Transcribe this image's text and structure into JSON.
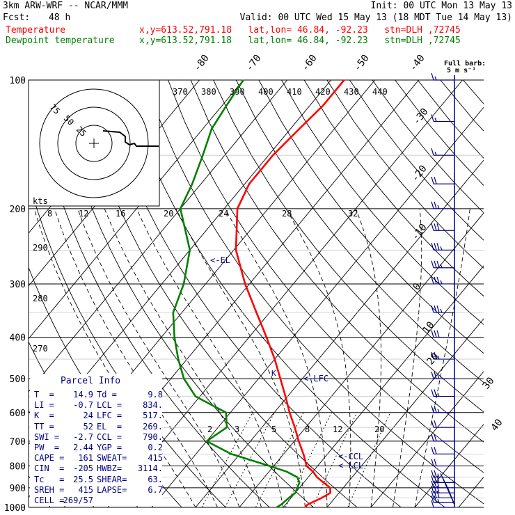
{
  "header": {
    "model": "3km ARW-WRF -- NCAR/MMM",
    "init": "Init: 00 UTC Mon 13 May 13",
    "fcst_label": "Fcst:",
    "fcst_value": "48 h",
    "valid": "Valid: 00 UTC Wed 15 May 13 (18 MDT Tue 14 May 13)",
    "temperature_label": "Temperature",
    "temperature_info": "x,y=613.52,791.18   lat,lon= 46.84, -92.23   stn=DLH ,72745",
    "dewpoint_label": "Dewpoint temperature",
    "dewpoint_info": "x,y=613.52,791.18   lat,lon= 46.84, -92.23   stn=DLH ,72745"
  },
  "colors": {
    "temperature": "#ff0000",
    "dewpoint": "#008000",
    "text": "#000080",
    "frame": "#000000",
    "isotherm_labels": "#000000"
  },
  "hodograph": {
    "kts_label": "kts",
    "ring_labels": [
      "75",
      "50",
      "25"
    ]
  },
  "barb_legend": {
    "title": "Full barb:",
    "value": "5 m s⁻¹"
  },
  "markers": {
    "el": "<-EL",
    "lfc": "<-LFC",
    "ccl": "<-CCL",
    "lcl": "<-LCL"
  },
  "parcel_info": {
    "title": "Parcel Info",
    "rows": [
      {
        "k1": "T  =",
        "v1": "14.9",
        "k2": "Td =",
        "v2": "9.8"
      },
      {
        "k1": "LI =",
        "v1": "-0.7",
        "k2": "LCL =",
        "v2": "834."
      },
      {
        "k1": "K  =",
        "v1": "24",
        "k2": "LFC =",
        "v2": "517."
      },
      {
        "k1": "TT =",
        "v1": "52",
        "k2": "EL  =",
        "v2": "269."
      },
      {
        "k1": "SWI =",
        "v1": "-2.7",
        "k2": "CCL =",
        "v2": "790."
      },
      {
        "k1": "PW  =",
        "v1": "2.44",
        "k2": "YGP =",
        "v2": "0.2"
      },
      {
        "k1": "CAPE =",
        "v1": "161",
        "k2": "SWEAT=",
        "v2": "415"
      },
      {
        "k1": "CIN  =",
        "v1": "-205",
        "k2": "HWBZ=",
        "v2": "3114."
      },
      {
        "k1": "Tc   =",
        "v1": "25.5",
        "k2": "SHEAR=",
        "v2": "63."
      },
      {
        "k1": "SREH =",
        "v1": "415",
        "k2": "LAPSE=",
        "v2": "6.7"
      },
      {
        "k1": "CELL =",
        "v1": "269/57",
        "k2": "",
        "v2": ""
      }
    ]
  },
  "chart_data": {
    "type": "line",
    "title": "",
    "ylabel": "",
    "xlabel": "",
    "y_axis_scale": "log pressure (hPa)",
    "pressure_ticks": [
      "100",
      "200",
      "300",
      "400",
      "500",
      "600",
      "700",
      "800",
      "900",
      "1000"
    ],
    "skewed_isotherm_labels_top": [
      "-80",
      "-70",
      "-60",
      "-50",
      "-40"
    ],
    "skewed_isotherm_labels_right": [
      "-30",
      "-20",
      "-10",
      "0",
      "10",
      "20",
      "30",
      "40"
    ],
    "theta_labels": [
      "370",
      "380",
      "390",
      "400",
      "410",
      "420",
      "430",
      "440"
    ],
    "hodograph_scale_labels": [
      "8",
      "12",
      "16",
      "20",
      "24",
      "28",
      "32"
    ],
    "left_theta_labels": [
      "290",
      "280",
      "270"
    ],
    "mixing_ratio_labels": [
      "2",
      "3",
      "5",
      "8",
      "12",
      "20"
    ],
    "series": [
      {
        "name": "Temperature",
        "points": [
          {
            "p": 1000,
            "t": 15.0
          },
          {
            "p": 985,
            "t": 15.0
          },
          {
            "p": 950,
            "t": 17.0
          },
          {
            "p": 925,
            "t": 18.0
          },
          {
            "p": 900,
            "t": 17.0
          },
          {
            "p": 875,
            "t": 14.5
          },
          {
            "p": 850,
            "t": 12.0
          },
          {
            "p": 825,
            "t": 10.0
          },
          {
            "p": 800,
            "t": 7.5
          },
          {
            "p": 750,
            "t": 4.5
          },
          {
            "p": 700,
            "t": 1.0
          },
          {
            "p": 650,
            "t": -2.5
          },
          {
            "p": 600,
            "t": -6.5
          },
          {
            "p": 550,
            "t": -10.5
          },
          {
            "p": 500,
            "t": -15.0
          },
          {
            "p": 450,
            "t": -20.0
          },
          {
            "p": 400,
            "t": -26.0
          },
          {
            "p": 350,
            "t": -33.0
          },
          {
            "p": 300,
            "t": -41.0
          },
          {
            "p": 250,
            "t": -49.5
          },
          {
            "p": 200,
            "t": -57.0
          },
          {
            "p": 175,
            "t": -59.0
          },
          {
            "p": 150,
            "t": -59.0
          },
          {
            "p": 130,
            "t": -58.0
          },
          {
            "p": 115,
            "t": -57.0
          },
          {
            "p": 100,
            "t": -57.0
          }
        ]
      },
      {
        "name": "Dewpoint temperature",
        "points": [
          {
            "p": 1000,
            "t": 8.5
          },
          {
            "p": 985,
            "t": 9.0
          },
          {
            "p": 950,
            "t": 9.5
          },
          {
            "p": 925,
            "t": 10.0
          },
          {
            "p": 900,
            "t": 9.5
          },
          {
            "p": 875,
            "t": 9.0
          },
          {
            "p": 850,
            "t": 7.5
          },
          {
            "p": 825,
            "t": 4.0
          },
          {
            "p": 800,
            "t": -1.0
          },
          {
            "p": 750,
            "t": -12.0
          },
          {
            "p": 700,
            "t": -20.0
          },
          {
            "p": 650,
            "t": -18.0
          },
          {
            "p": 600,
            "t": -21.0
          },
          {
            "p": 550,
            "t": -31.0
          },
          {
            "p": 500,
            "t": -37.0
          },
          {
            "p": 450,
            "t": -42.0
          },
          {
            "p": 400,
            "t": -47.0
          },
          {
            "p": 350,
            "t": -52.0
          },
          {
            "p": 300,
            "t": -55.0
          },
          {
            "p": 250,
            "t": -60.0
          },
          {
            "p": 200,
            "t": -70.0
          },
          {
            "p": 175,
            "t": -72.0
          },
          {
            "p": 150,
            "t": -75.0
          },
          {
            "p": 130,
            "t": -78.0
          },
          {
            "p": 115,
            "t": -79.0
          },
          {
            "p": 100,
            "t": -80.0
          }
        ]
      }
    ],
    "wind_barbs": [
      {
        "p": 1000,
        "spd": 10,
        "dir": 150
      },
      {
        "p": 975,
        "spd": 25,
        "dir": 175
      },
      {
        "p": 950,
        "spd": 30,
        "dir": 195
      },
      {
        "p": 925,
        "spd": 30,
        "dir": 210
      },
      {
        "p": 900,
        "spd": 30,
        "dir": 220
      },
      {
        "p": 875,
        "spd": 30,
        "dir": 230
      },
      {
        "p": 850,
        "spd": 25,
        "dir": 240
      },
      {
        "p": 800,
        "spd": 20,
        "dir": 250
      },
      {
        "p": 750,
        "spd": 20,
        "dir": 255
      },
      {
        "p": 700,
        "spd": 20,
        "dir": 260
      },
      {
        "p": 650,
        "spd": 20,
        "dir": 265
      },
      {
        "p": 600,
        "spd": 25,
        "dir": 265
      },
      {
        "p": 550,
        "spd": 25,
        "dir": 265
      },
      {
        "p": 500,
        "spd": 25,
        "dir": 265
      },
      {
        "p": 450,
        "spd": 25,
        "dir": 265
      },
      {
        "p": 400,
        "spd": 30,
        "dir": 265
      },
      {
        "p": 350,
        "spd": 35,
        "dir": 265
      },
      {
        "p": 300,
        "spd": 35,
        "dir": 265
      },
      {
        "p": 275,
        "spd": 35,
        "dir": 265
      },
      {
        "p": 250,
        "spd": 35,
        "dir": 265
      },
      {
        "p": 225,
        "spd": 30,
        "dir": 265
      },
      {
        "p": 200,
        "spd": 25,
        "dir": 265
      },
      {
        "p": 175,
        "spd": 20,
        "dir": 265
      },
      {
        "p": 150,
        "spd": 15,
        "dir": 260
      },
      {
        "p": 125,
        "spd": 15,
        "dir": 255
      },
      {
        "p": 100,
        "spd": 15,
        "dir": 255
      }
    ]
  }
}
